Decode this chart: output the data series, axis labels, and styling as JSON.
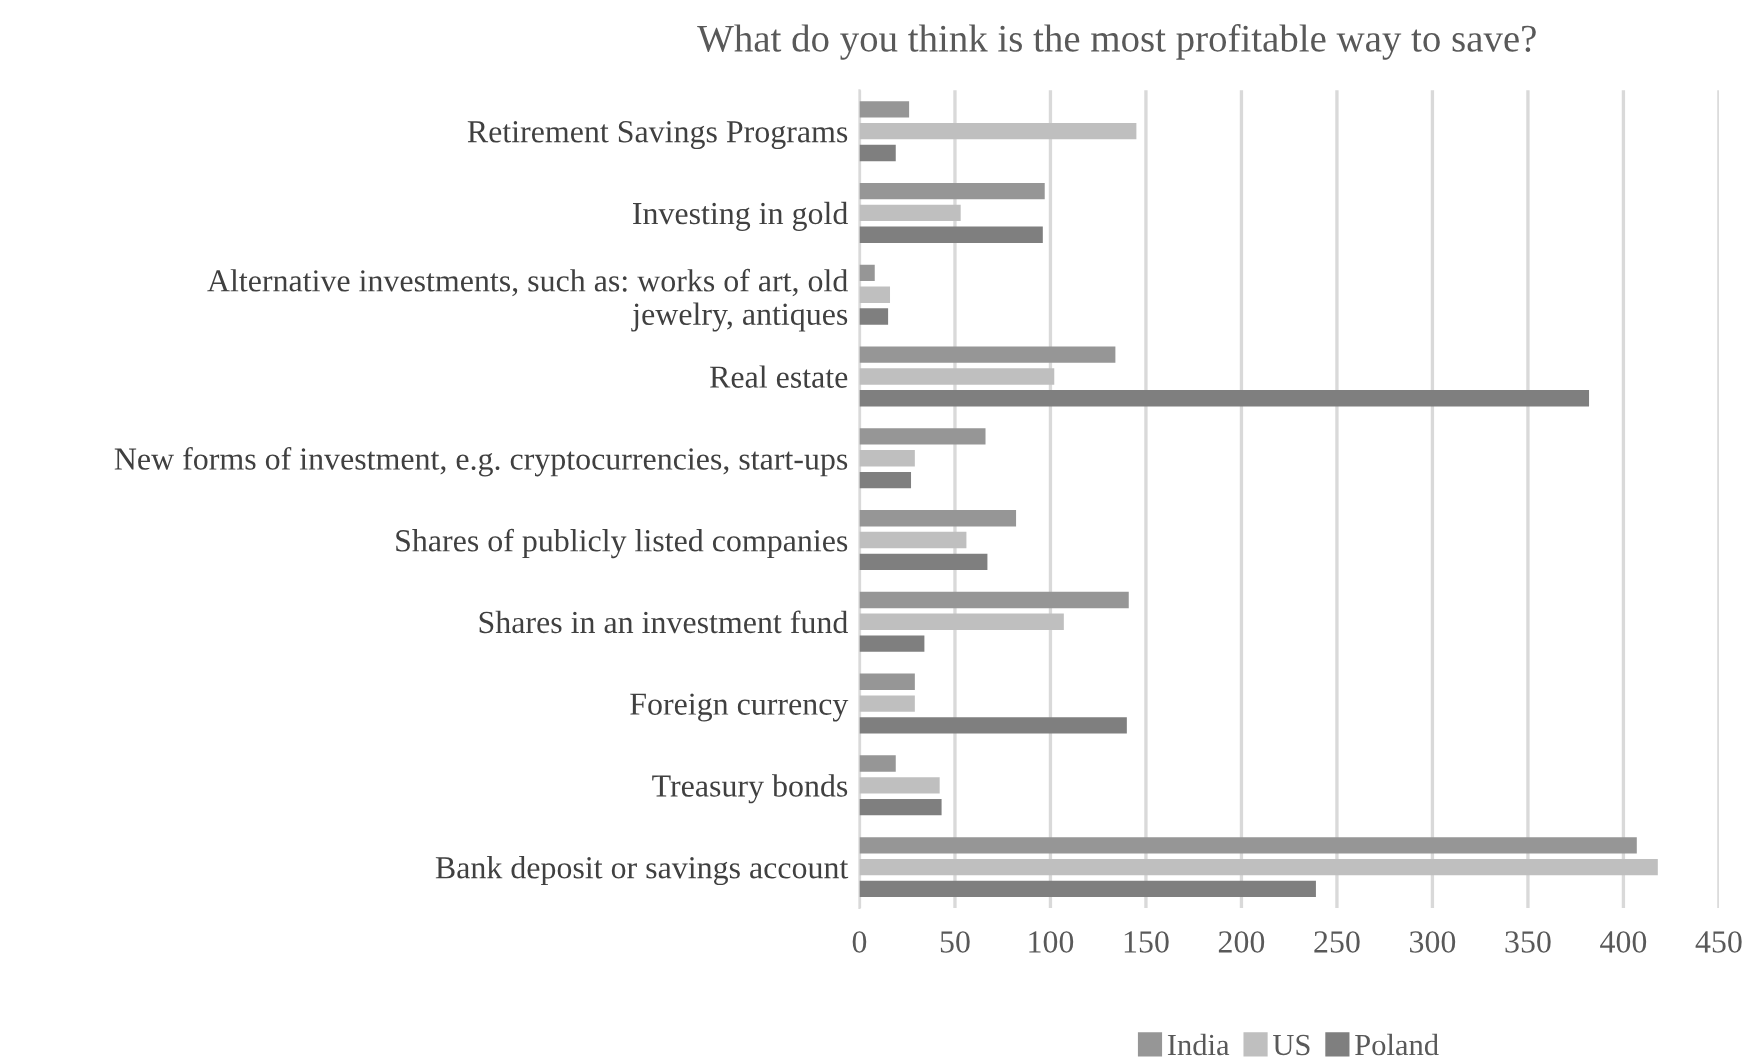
{
  "chart_data": {
    "type": "bar",
    "orientation": "horizontal",
    "title": "What do you think is the most profitable way to save?",
    "categories": [
      "Retirement Savings Programs",
      "Investing in gold",
      "Alternative investments, such as: works of art, old\njewelry, antiques",
      "Real estate",
      "New forms of investment, e.g. cryptocurrencies, start-ups",
      "Shares of publicly listed companies",
      "Shares in an investment fund",
      "Foreign currency",
      "Treasury bonds",
      "Bank deposit or savings account"
    ],
    "series": [
      {
        "name": "India",
        "color": "#969696",
        "values": [
          26,
          97,
          8,
          134,
          66,
          82,
          141,
          29,
          19,
          407
        ]
      },
      {
        "name": "US",
        "color": "#bfbfbf",
        "values": [
          145,
          53,
          16,
          102,
          29,
          56,
          107,
          29,
          42,
          418
        ]
      },
      {
        "name": "Poland",
        "color": "#7f7f7f",
        "values": [
          19,
          96,
          15,
          382,
          27,
          67,
          34,
          140,
          43,
          239
        ]
      }
    ],
    "xlim": [
      0,
      450
    ],
    "xticks": [
      0,
      50,
      100,
      150,
      200,
      250,
      300,
      350,
      400,
      450
    ],
    "grid": "x",
    "legend": "bottom"
  }
}
